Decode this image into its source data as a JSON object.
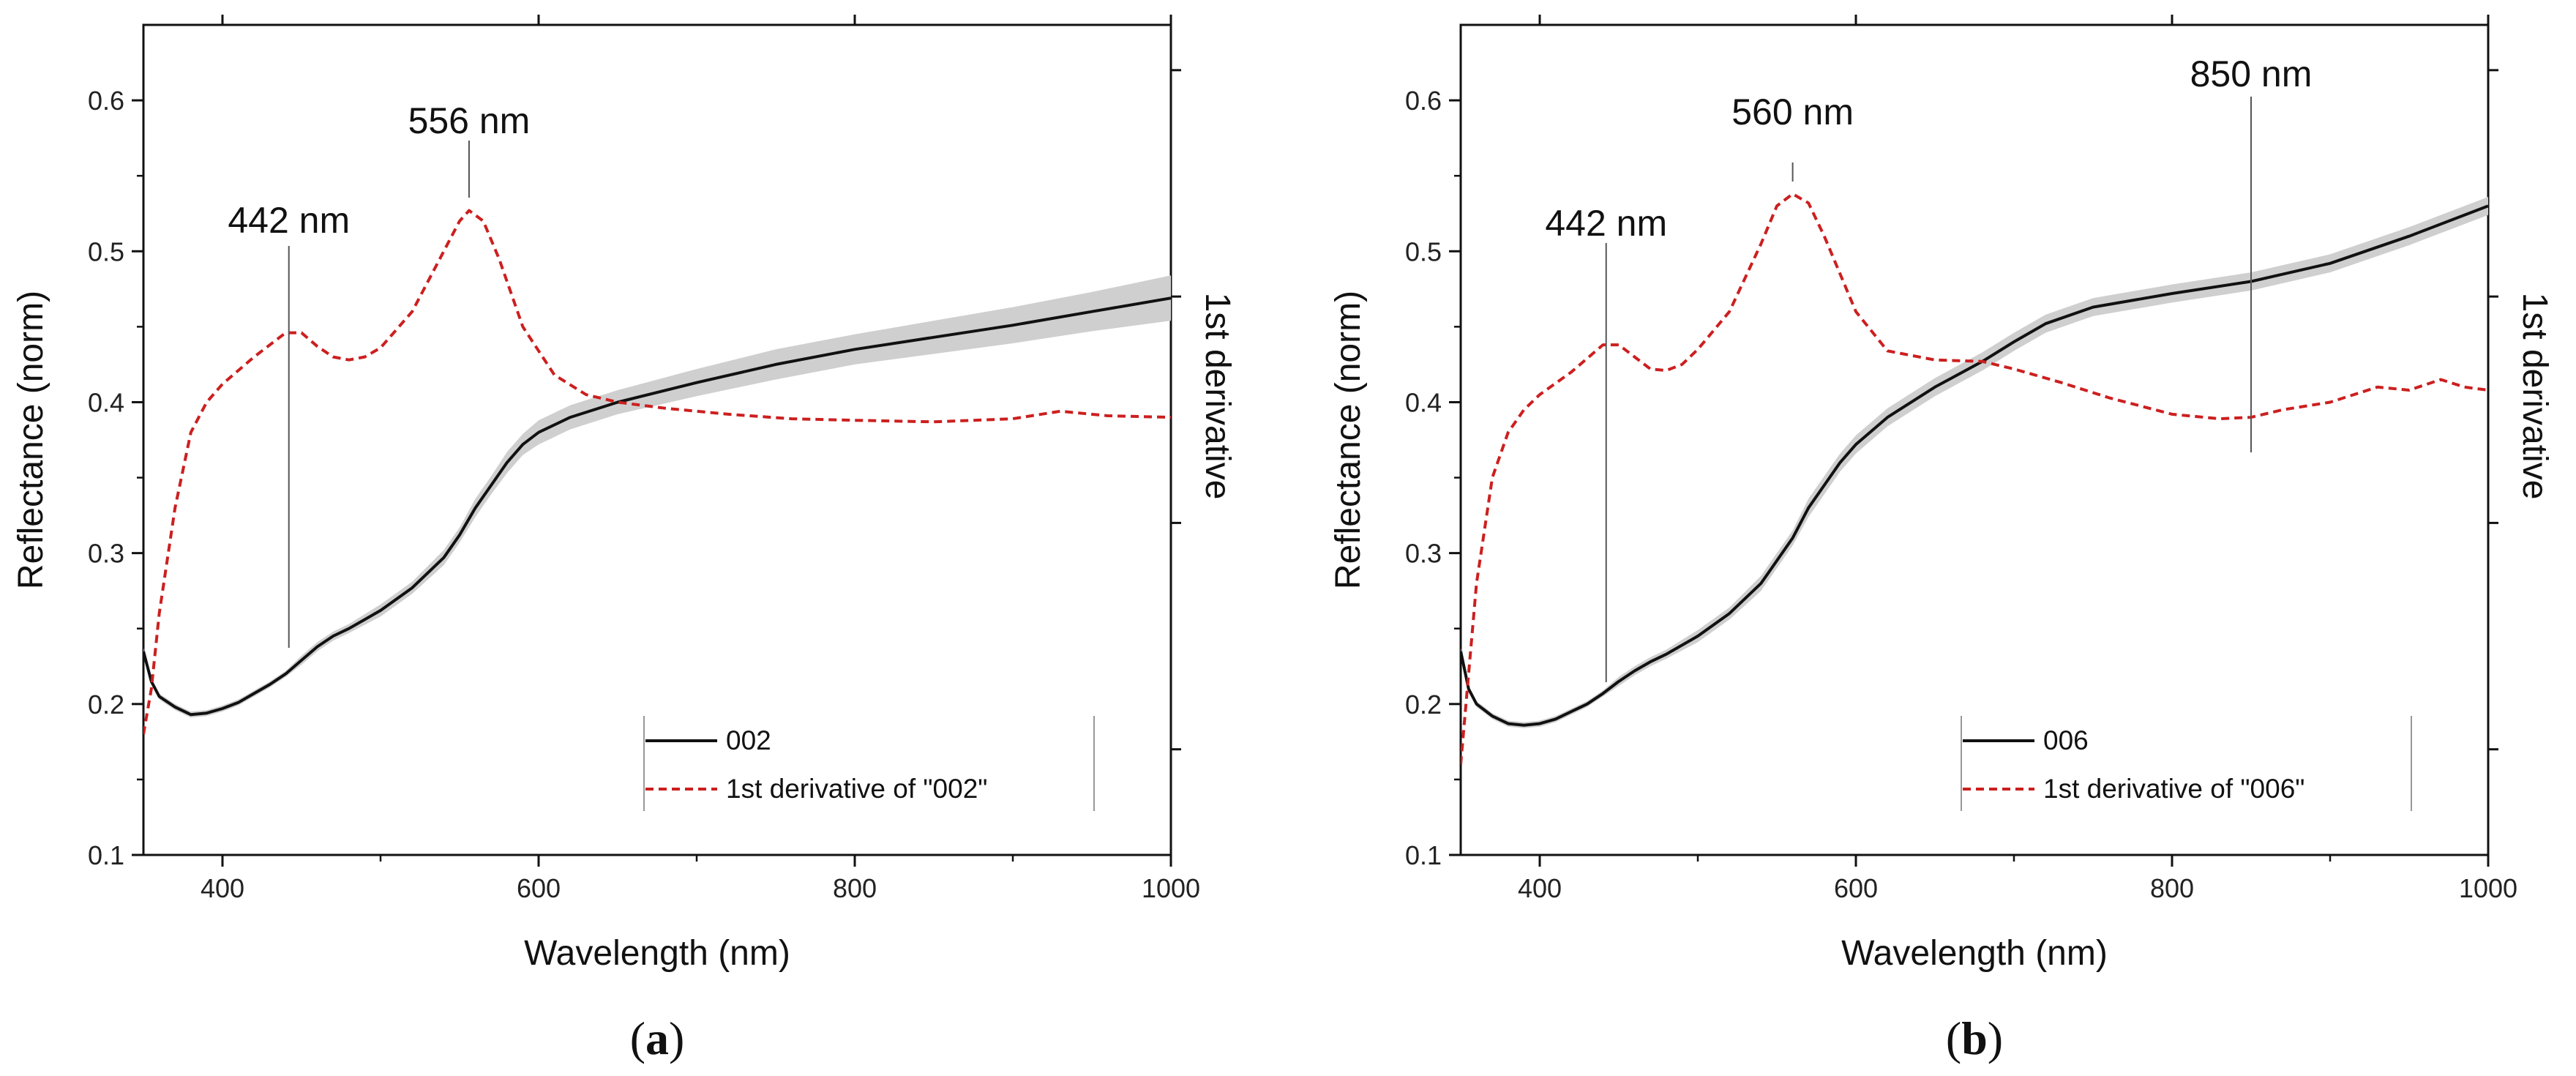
{
  "chart_data": [
    {
      "type": "line",
      "panel_label": "a",
      "xlabel": "Wavelength (nm)",
      "ylabel": "Reflectance (norm)",
      "y2label": "1st derivative",
      "xlim": [
        350,
        1000
      ],
      "ylim": [
        0.1,
        0.65
      ],
      "xticks": [
        400,
        600,
        800,
        1000
      ],
      "yticks": [
        0.1,
        0.2,
        0.3,
        0.4,
        0.5,
        0.6
      ],
      "legend_position": "bottom-right",
      "annotations": [
        {
          "text": "442 nm",
          "x": 442
        },
        {
          "text": "556 nm",
          "x": 556
        }
      ],
      "series": [
        {
          "name": "002",
          "style": "solid",
          "color": "#111111",
          "band_color": "#cfcfcf",
          "x": [
            350,
            355,
            360,
            370,
            380,
            390,
            400,
            410,
            420,
            430,
            440,
            450,
            460,
            470,
            480,
            500,
            520,
            540,
            550,
            560,
            570,
            580,
            590,
            600,
            620,
            650,
            700,
            750,
            800,
            850,
            900,
            950,
            1000
          ],
          "y": [
            0.235,
            0.215,
            0.205,
            0.198,
            0.193,
            0.194,
            0.197,
            0.201,
            0.207,
            0.213,
            0.22,
            0.229,
            0.238,
            0.245,
            0.25,
            0.262,
            0.277,
            0.297,
            0.312,
            0.33,
            0.345,
            0.36,
            0.372,
            0.38,
            0.39,
            0.4,
            0.413,
            0.425,
            0.435,
            0.443,
            0.451,
            0.46,
            0.469
          ],
          "band_halfwidth": [
            0.002,
            0.002,
            0.002,
            0.002,
            0.002,
            0.002,
            0.002,
            0.002,
            0.002,
            0.002,
            0.002,
            0.003,
            0.003,
            0.003,
            0.003,
            0.004,
            0.004,
            0.005,
            0.005,
            0.006,
            0.006,
            0.007,
            0.007,
            0.008,
            0.008,
            0.008,
            0.009,
            0.01,
            0.01,
            0.011,
            0.012,
            0.013,
            0.015
          ]
        },
        {
          "name": "1st derivative of \"002\"",
          "style": "dashed",
          "color": "#cc1f1f",
          "x": [
            350,
            355,
            360,
            370,
            380,
            390,
            400,
            420,
            440,
            450,
            460,
            470,
            480,
            490,
            500,
            520,
            540,
            550,
            556,
            565,
            575,
            590,
            610,
            630,
            650,
            680,
            720,
            760,
            800,
            850,
            900,
            930,
            960,
            1000
          ],
          "y": [
            0.18,
            0.21,
            0.26,
            0.33,
            0.38,
            0.4,
            0.412,
            0.43,
            0.446,
            0.446,
            0.437,
            0.43,
            0.428,
            0.43,
            0.436,
            0.46,
            0.5,
            0.52,
            0.527,
            0.52,
            0.495,
            0.45,
            0.418,
            0.405,
            0.4,
            0.396,
            0.392,
            0.389,
            0.388,
            0.387,
            0.389,
            0.394,
            0.391,
            0.39
          ]
        }
      ]
    },
    {
      "type": "line",
      "panel_label": "b",
      "xlabel": "Wavelength (nm)",
      "ylabel": "Reflectance (norm)",
      "y2label": "1st derivative",
      "xlim": [
        350,
        1000
      ],
      "ylim": [
        0.1,
        0.65
      ],
      "xticks": [
        400,
        600,
        800,
        1000
      ],
      "yticks": [
        0.1,
        0.2,
        0.3,
        0.4,
        0.5,
        0.6
      ],
      "legend_position": "bottom-right",
      "annotations": [
        {
          "text": "442 nm",
          "x": 442
        },
        {
          "text": "560 nm",
          "x": 560
        },
        {
          "text": "850 nm",
          "x": 850
        }
      ],
      "series": [
        {
          "name": "006",
          "style": "solid",
          "color": "#111111",
          "band_color": "#cfcfcf",
          "x": [
            350,
            355,
            360,
            370,
            380,
            390,
            400,
            410,
            420,
            430,
            440,
            450,
            460,
            470,
            480,
            500,
            520,
            540,
            560,
            570,
            580,
            590,
            600,
            620,
            650,
            680,
            700,
            720,
            750,
            800,
            850,
            900,
            950,
            1000
          ],
          "y": [
            0.235,
            0.21,
            0.2,
            0.192,
            0.187,
            0.186,
            0.187,
            0.19,
            0.195,
            0.2,
            0.207,
            0.215,
            0.222,
            0.228,
            0.233,
            0.245,
            0.26,
            0.28,
            0.31,
            0.33,
            0.345,
            0.36,
            0.372,
            0.39,
            0.41,
            0.427,
            0.44,
            0.452,
            0.463,
            0.472,
            0.48,
            0.492,
            0.51,
            0.53
          ],
          "band_halfwidth": [
            0.002,
            0.002,
            0.002,
            0.002,
            0.002,
            0.002,
            0.002,
            0.002,
            0.002,
            0.002,
            0.002,
            0.003,
            0.003,
            0.003,
            0.003,
            0.004,
            0.004,
            0.005,
            0.005,
            0.006,
            0.006,
            0.006,
            0.006,
            0.006,
            0.006,
            0.006,
            0.006,
            0.006,
            0.006,
            0.006,
            0.006,
            0.006,
            0.006,
            0.006
          ]
        },
        {
          "name": "1st derivative of \"006\"",
          "style": "dashed",
          "color": "#cc1f1f",
          "x": [
            350,
            355,
            360,
            370,
            380,
            390,
            400,
            420,
            440,
            450,
            460,
            470,
            480,
            490,
            500,
            520,
            540,
            550,
            560,
            570,
            580,
            600,
            620,
            650,
            680,
            700,
            730,
            760,
            800,
            830,
            850,
            870,
            900,
            930,
            950,
            970,
            985,
            1000
          ],
          "y": [
            0.16,
            0.22,
            0.28,
            0.35,
            0.38,
            0.395,
            0.405,
            0.42,
            0.438,
            0.438,
            0.43,
            0.422,
            0.421,
            0.425,
            0.435,
            0.46,
            0.505,
            0.53,
            0.538,
            0.532,
            0.51,
            0.46,
            0.434,
            0.428,
            0.427,
            0.422,
            0.413,
            0.403,
            0.392,
            0.389,
            0.39,
            0.395,
            0.4,
            0.41,
            0.408,
            0.415,
            0.41,
            0.408
          ]
        }
      ]
    }
  ]
}
